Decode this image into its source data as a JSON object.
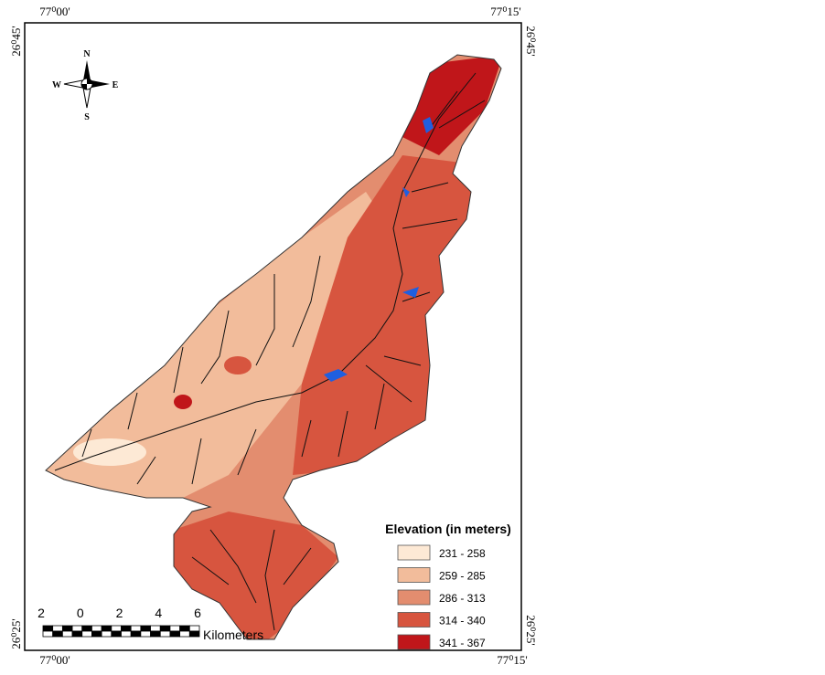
{
  "map": {
    "coordinates": {
      "top_left": "77⁰00'",
      "top_right": "77⁰15'",
      "bottom_left": "77⁰00'",
      "bottom_right": "77⁰15'",
      "left_top": "26⁰45'",
      "left_bottom": "26⁰25'",
      "right_top": "26⁰45'",
      "right_bottom": "26⁰25'"
    },
    "compass": {
      "n": "N",
      "s": "S",
      "e": "E",
      "w": "W"
    },
    "legend": {
      "title": "Elevation (in meters)",
      "items": [
        {
          "label": "231 - 258",
          "color": "#fde9d5"
        },
        {
          "label": "259 - 285",
          "color": "#f2bc9b"
        },
        {
          "label": "286 - 313",
          "color": "#e38d6f"
        },
        {
          "label": "314 - 340",
          "color": "#d7553f"
        },
        {
          "label": "341 - 367",
          "color": "#c0161a"
        }
      ]
    },
    "scale_bar": {
      "ticks": [
        "2",
        "0",
        "2",
        "4",
        "6"
      ],
      "unit": "Kilometers"
    }
  }
}
